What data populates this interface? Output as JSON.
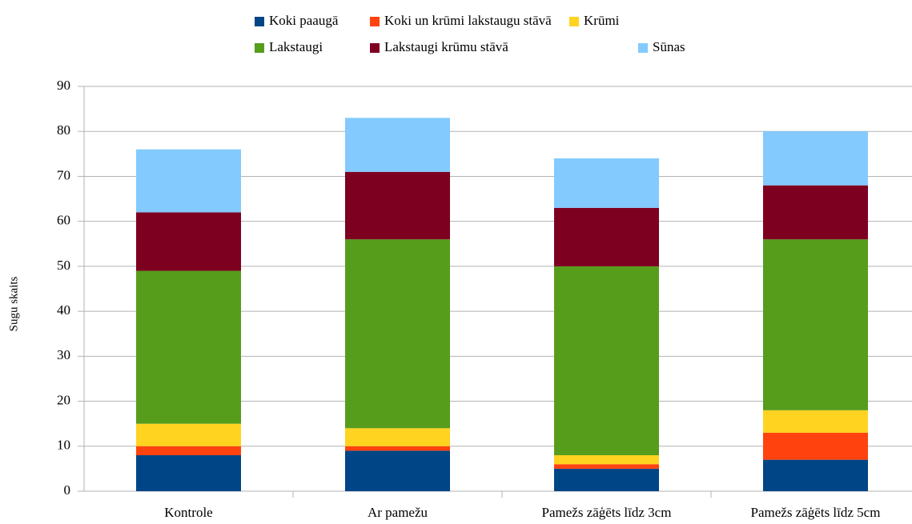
{
  "chart_data": {
    "type": "stacked_bar",
    "y_label": "Sugu skaits",
    "categories": [
      "Kontrole",
      "Ar pamežu",
      "Pamežs zāģēts līdz 3cm",
      "Pamežs zāģēts līdz 5cm"
    ],
    "series": [
      {
        "name": "Koki paaugā",
        "color": "#004586",
        "values": [
          8,
          9,
          5,
          7
        ]
      },
      {
        "name": "Koki un krūmi lakstaugu stāvā",
        "color": "#ff420e",
        "values": [
          2,
          1,
          1,
          6
        ]
      },
      {
        "name": "Krūmi",
        "color": "#ffd320",
        "values": [
          5,
          4,
          2,
          5
        ]
      },
      {
        "name": "Lakstaugi",
        "color": "#579d1c",
        "values": [
          34,
          42,
          42,
          38
        ]
      },
      {
        "name": "Lakstaugi krūmu stāvā",
        "color": "#7e0021",
        "values": [
          13,
          15,
          13,
          12
        ]
      },
      {
        "name": "Sūnas",
        "color": "#83caff",
        "values": [
          14,
          12,
          11,
          12
        ]
      }
    ],
    "ylim": [
      0,
      90
    ],
    "yticks": [
      0,
      10,
      20,
      30,
      40,
      50,
      60,
      70,
      80,
      90
    ],
    "grid": true,
    "legend": "top"
  }
}
